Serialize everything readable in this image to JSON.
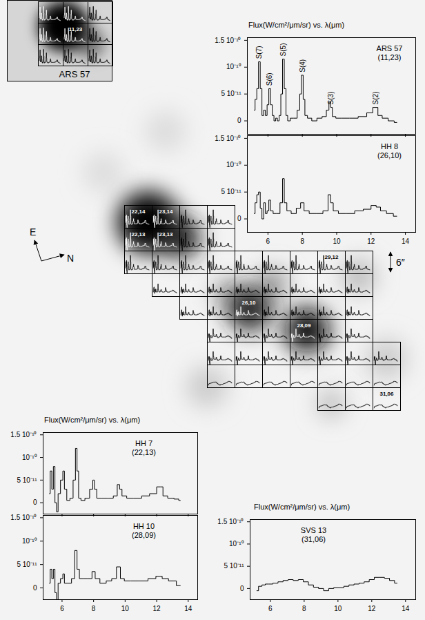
{
  "chart_data": [
    {
      "type": "line",
      "title": "Flux(W/cm²/μm/sr) vs. λ(μm)",
      "name": "ARS 57",
      "subtitle": "(11,23)",
      "legend": "top-right",
      "color": "#000000",
      "line_style": "step",
      "tick_labels": "y",
      "xlim": [
        4.8,
        14.6
      ],
      "xticks": [
        6,
        8,
        10,
        12,
        14
      ],
      "ylim": [
        -2.5e-11,
        1.55e-10
      ],
      "yticks": [
        0,
        {
          "value": 5e-11,
          "label": "5 10⁻¹¹"
        },
        {
          "value": 1e-10,
          "label": "10⁻¹⁰"
        },
        {
          "value": 1.5e-10,
          "label": "1.5 10⁻¹⁰"
        }
      ],
      "x": [
        5.2,
        5.3,
        5.4,
        5.5,
        5.6,
        5.7,
        5.8,
        5.9,
        6.0,
        6.1,
        6.2,
        6.3,
        6.4,
        6.5,
        6.6,
        6.7,
        6.8,
        6.9,
        7.0,
        7.1,
        7.2,
        7.4,
        7.6,
        7.8,
        7.9,
        8.0,
        8.1,
        8.2,
        8.4,
        8.7,
        9.0,
        9.3,
        9.5,
        9.6,
        9.7,
        9.8,
        10.1,
        10.5,
        11.0,
        11.5,
        12.0,
        12.2,
        12.3,
        12.5,
        12.8,
        13.2,
        13.5
      ],
      "values": [
        2e-11,
        4e-11,
        6e-11,
        1.1e-10,
        6e-11,
        1e-11,
        2e-11,
        1e-11,
        3e-11,
        6e-11,
        3e-11,
        1e-11,
        0,
        5e-12,
        0,
        1e-11,
        5e-11,
        1.15e-10,
        6e-11,
        1e-11,
        0,
        5e-12,
        5e-12,
        2e-11,
        5e-11,
        8.5e-11,
        4e-11,
        1e-11,
        5e-12,
        0,
        5e-12,
        8e-12,
        2e-11,
        3.5e-11,
        2.5e-11,
        8e-12,
        5e-12,
        5e-12,
        5e-12,
        8e-12,
        1.5e-11,
        2.5e-11,
        2.5e-11,
        1e-11,
        5e-12,
        0,
        -3e-12
      ],
      "annotations": [
        {
          "text": "S(7)",
          "x": 5.51
        },
        {
          "text": "S(6)",
          "x": 6.11
        },
        {
          "text": "S(5)",
          "x": 6.91
        },
        {
          "text": "S(4)",
          "x": 8.03
        },
        {
          "text": "S(3)",
          "x": 9.66
        },
        {
          "text": "S(2)",
          "x": 12.28
        }
      ]
    },
    {
      "type": "line",
      "name": "HH 8",
      "subtitle": "(26,10)",
      "legend": "top-right",
      "color": "#000000",
      "line_style": "step",
      "tick_labels": true,
      "xlim": [
        4.8,
        14.6
      ],
      "xticks": [
        6,
        8,
        10,
        12,
        14
      ],
      "ylim": [
        -2.5e-11,
        1.55e-10
      ],
      "yticks": [
        0,
        {
          "value": 5e-11,
          "label": "5 10⁻¹¹"
        },
        {
          "value": 1e-10,
          "label": "10⁻¹⁰"
        },
        {
          "value": 1.5e-10,
          "label": "1.5 10⁻¹⁰"
        }
      ],
      "x": [
        5.2,
        5.3,
        5.4,
        5.5,
        5.6,
        5.7,
        5.8,
        5.9,
        6.0,
        6.1,
        6.2,
        6.4,
        6.6,
        6.8,
        6.9,
        7.0,
        7.2,
        7.5,
        7.8,
        8.0,
        8.2,
        8.6,
        9.0,
        9.4,
        9.6,
        9.7,
        9.9,
        10.3,
        10.8,
        11.3,
        11.8,
        12.2,
        12.4,
        12.7,
        13.1,
        13.5
      ],
      "values": [
        1e-11,
        3e-11,
        4.5e-11,
        5e-11,
        2e-11,
        0,
        3e-11,
        1e-11,
        1.5e-11,
        3.5e-11,
        1.5e-11,
        1e-11,
        1e-11,
        3e-11,
        7.5e-11,
        3e-11,
        1.5e-11,
        1e-11,
        2e-11,
        3e-11,
        1.5e-11,
        1e-11,
        1e-11,
        1.5e-11,
        4.5e-11,
        3e-11,
        1.5e-11,
        1e-11,
        1e-11,
        1.5e-11,
        1.8e-11,
        2.5e-11,
        2.2e-11,
        1.5e-11,
        1e-11,
        5e-12
      ]
    },
    {
      "type": "line",
      "title": "Flux(W/cm²/μm/sr) vs. λ(μm)",
      "name": "HH 7",
      "subtitle": "(22,13)",
      "legend": "top-right",
      "color": "#000000",
      "line_style": "step",
      "tick_labels": "y",
      "xlim": [
        4.8,
        14.6
      ],
      "xticks": [
        6,
        8,
        10,
        12,
        14
      ],
      "ylim": [
        -2.5e-11,
        1.55e-10
      ],
      "yticks": [
        0,
        {
          "value": 5e-11,
          "label": "5 10⁻¹¹"
        },
        {
          "value": 1e-10,
          "label": "10⁻¹⁰"
        },
        {
          "value": 1.5e-10,
          "label": "1.5 10⁻¹⁰"
        }
      ],
      "x": [
        5.2,
        5.3,
        5.4,
        5.5,
        5.6,
        5.7,
        5.8,
        6.0,
        6.1,
        6.2,
        6.4,
        6.6,
        6.8,
        6.9,
        7.0,
        7.1,
        7.3,
        7.6,
        7.9,
        8.0,
        8.1,
        8.3,
        8.7,
        9.1,
        9.4,
        9.6,
        9.7,
        9.9,
        10.3,
        10.8,
        11.3,
        11.8,
        12.2,
        12.3,
        12.5,
        12.9,
        13.3,
        13.5
      ],
      "values": [
        2e-11,
        7e-11,
        3e-11,
        8e-11,
        0,
        -2e-11,
        2e-11,
        5e-11,
        7e-11,
        3e-11,
        5e-12,
        1e-11,
        5e-11,
        1.2e-10,
        7e-11,
        1e-11,
        5e-12,
        1e-11,
        3e-11,
        5e-11,
        3e-11,
        1e-11,
        1e-11,
        1e-11,
        1.5e-11,
        4e-11,
        3e-11,
        1.5e-11,
        1e-11,
        1e-11,
        1.5e-11,
        2e-11,
        3.5e-11,
        3.5e-11,
        1.5e-11,
        1e-11,
        8e-12,
        5e-12
      ]
    },
    {
      "type": "line",
      "name": "HH 10",
      "subtitle": "(28,09)",
      "legend": "top-right",
      "color": "#000000",
      "line_style": "step",
      "tick_labels": true,
      "xlim": [
        4.8,
        14.6
      ],
      "xticks": [
        6,
        8,
        10,
        12,
        14
      ],
      "ylim": [
        -2.5e-11,
        1.55e-10
      ],
      "yticks": [
        0,
        {
          "value": 5e-11,
          "label": "5 10⁻¹¹"
        },
        {
          "value": 1e-10,
          "label": "10⁻¹⁰"
        },
        {
          "value": 1.5e-10,
          "label": "1.5 10⁻¹⁰"
        }
      ],
      "x": [
        5.2,
        5.3,
        5.4,
        5.5,
        5.6,
        5.7,
        5.8,
        6.0,
        6.1,
        6.2,
        6.5,
        6.7,
        6.9,
        7.0,
        7.2,
        7.5,
        7.8,
        8.0,
        8.2,
        8.6,
        9.0,
        9.3,
        9.6,
        9.8,
        10.1,
        10.6,
        11.2,
        11.7,
        12.2,
        12.5,
        13.0,
        13.5
      ],
      "values": [
        1e-11,
        4e-11,
        2e-11,
        4e-11,
        -1e-11,
        -3e-11,
        1e-11,
        2e-11,
        3e-11,
        1e-11,
        1e-11,
        2e-11,
        8e-11,
        4e-11,
        2e-11,
        2e-11,
        2e-11,
        3.5e-11,
        2e-11,
        1e-11,
        1.5e-11,
        2e-11,
        4.5e-11,
        2e-11,
        1.5e-11,
        1.5e-11,
        1.5e-11,
        2e-11,
        2.5e-11,
        2e-11,
        1.5e-11,
        5e-12
      ]
    },
    {
      "type": "line",
      "title": "Flux(W/cm²/μm/sr) vs. λ(μm)",
      "name": "SVS 13",
      "subtitle": "(31,06)",
      "legend": "top-left",
      "color": "#000000",
      "line_style": "step",
      "tick_labels": true,
      "xlim": [
        4.8,
        14.6
      ],
      "xticks": [
        6,
        8,
        10,
        12,
        14
      ],
      "ylim": [
        -2.5e-11,
        1.55e-10
      ],
      "yticks": [
        0,
        {
          "value": 5e-11,
          "label": "5 10⁻¹¹"
        },
        {
          "value": 1e-10,
          "label": "10⁻¹⁰"
        },
        {
          "value": 1.5e-10,
          "label": "1.5 10⁻¹⁰"
        }
      ],
      "x": [
        5.2,
        5.4,
        5.6,
        5.8,
        6.0,
        6.3,
        6.6,
        6.9,
        7.2,
        7.5,
        7.8,
        8.1,
        8.4,
        8.7,
        9.0,
        9.3,
        9.6,
        9.9,
        10.2,
        10.5,
        10.8,
        11.1,
        11.4,
        11.7,
        12.0,
        12.3,
        12.6,
        12.9,
        13.2,
        13.5
      ],
      "values": [
        -5e-12,
        5e-12,
        8e-12,
        1e-11,
        1e-11,
        1.2e-11,
        1.5e-11,
        1.8e-11,
        2e-11,
        1.8e-11,
        2e-11,
        1.5e-11,
        8e-12,
        3e-12,
        0,
        -5e-12,
        0,
        2e-12,
        2e-12,
        5e-12,
        8e-12,
        1e-11,
        1.2e-11,
        1.5e-11,
        2e-11,
        2.5e-11,
        2.5e-11,
        2.3e-11,
        1.8e-11,
        1.2e-11
      ]
    }
  ],
  "map": {
    "tick_labels": false,
    "compass": [
      "E",
      "N"
    ],
    "scale_label": "6″",
    "rows": [
      {
        "j": 14,
        "i": [
          22,
          23,
          24,
          25
        ],
        "colors": [
          "#ffffff",
          "#ffffff",
          "#000000",
          "#000000"
        ],
        "spectrum": "HH 7"
      },
      {
        "j": 13,
        "i": [
          22,
          23,
          24,
          25
        ],
        "colors": [
          "#ffffff",
          "#ffffff",
          "#000000",
          "#000000"
        ],
        "spectrum": "HH 7"
      },
      {
        "j": 12,
        "i": [
          22,
          23,
          24,
          25,
          26,
          27,
          28,
          29,
          30
        ],
        "colors": [
          "#000000",
          "#000000",
          "#000000",
          "#000000",
          "#000000",
          "#000000",
          "#000000",
          "#000000",
          "#000000"
        ],
        "spectrum": "HH 7"
      },
      {
        "j": 11,
        "i": [
          23,
          24,
          25,
          26,
          27,
          28,
          29,
          30
        ],
        "colors": [
          "#000000",
          "#000000",
          "#000000",
          "#000000",
          "#000000",
          "#000000",
          "#000000",
          "#000000"
        ],
        "spectrum": "HH 8"
      },
      {
        "j": 10,
        "i": [
          24,
          25,
          26,
          27,
          28,
          29,
          30
        ],
        "colors": [
          "#000000",
          "#000000",
          "#ffffff",
          "#000000",
          "#000000",
          "#000000",
          "#000000"
        ],
        "spectrum": "HH 8"
      },
      {
        "j": 9,
        "i": [
          25,
          26,
          27,
          28,
          29,
          30
        ],
        "colors": [
          "#000000",
          "#000000",
          "#000000",
          "#ffffff",
          "#000000",
          "#000000"
        ],
        "spectrum": "HH 10"
      },
      {
        "j": 8,
        "i": [
          25,
          26,
          27,
          28,
          29,
          30,
          31
        ],
        "colors": [
          "#000000",
          "#000000",
          "#000000",
          "#000000",
          "#000000",
          "#000000",
          "#000000"
        ],
        "spectrum": "HH 10"
      },
      {
        "j": 7,
        "i": [
          25,
          26,
          27,
          28,
          29,
          30,
          31
        ],
        "colors": [
          "#000000",
          "#000000",
          "#000000",
          "#000000",
          "#000000",
          "#000000",
          "#000000"
        ],
        "spectrum": "SVS 13"
      },
      {
        "j": 6,
        "i": [
          29,
          30,
          31
        ],
        "colors": [
          "#000000",
          "#000000",
          "#000000"
        ],
        "spectrum": "SVS 13"
      }
    ],
    "labels": [
      {
        "i": 22,
        "j": 14,
        "text": "22,14",
        "color": "#ffffff"
      },
      {
        "i": 23,
        "j": 14,
        "text": "23,14",
        "color": "#ffffff"
      },
      {
        "i": 22,
        "j": 13,
        "text": "22,13",
        "color": "#ffffff"
      },
      {
        "i": 23,
        "j": 13,
        "text": "23,13",
        "color": "#ffffff"
      },
      {
        "i": 29,
        "j": 12,
        "text": "29,12",
        "color": "#000000"
      },
      {
        "i": 26,
        "j": 10,
        "text": "26,10",
        "color": "#ffffff"
      },
      {
        "i": 28,
        "j": 9,
        "text": "28,09",
        "color": "#ffffff"
      },
      {
        "i": 31,
        "j": 6,
        "text": "31,06",
        "color": "#000000"
      }
    ],
    "inset": {
      "title": "ARS 57",
      "rows": [
        {
          "j": 24,
          "i": [
            10,
            11,
            12
          ],
          "colors": [
            "#ffffff",
            "#ffffff",
            "#000000"
          ],
          "spectrum": "ARS 57"
        },
        {
          "j": 23,
          "i": [
            10,
            11,
            12
          ],
          "colors": [
            "#ffffff",
            "#ffffff",
            "#000000"
          ],
          "spectrum": "ARS 57"
        },
        {
          "j": 22,
          "i": [
            10,
            11,
            12
          ],
          "colors": [
            "#000000",
            "#000000",
            "#000000"
          ],
          "spectrum": "ARS 57"
        }
      ],
      "labels": [
        {
          "i": 11,
          "j": 23,
          "text": "11,23",
          "color": "#ffffff"
        }
      ]
    }
  }
}
